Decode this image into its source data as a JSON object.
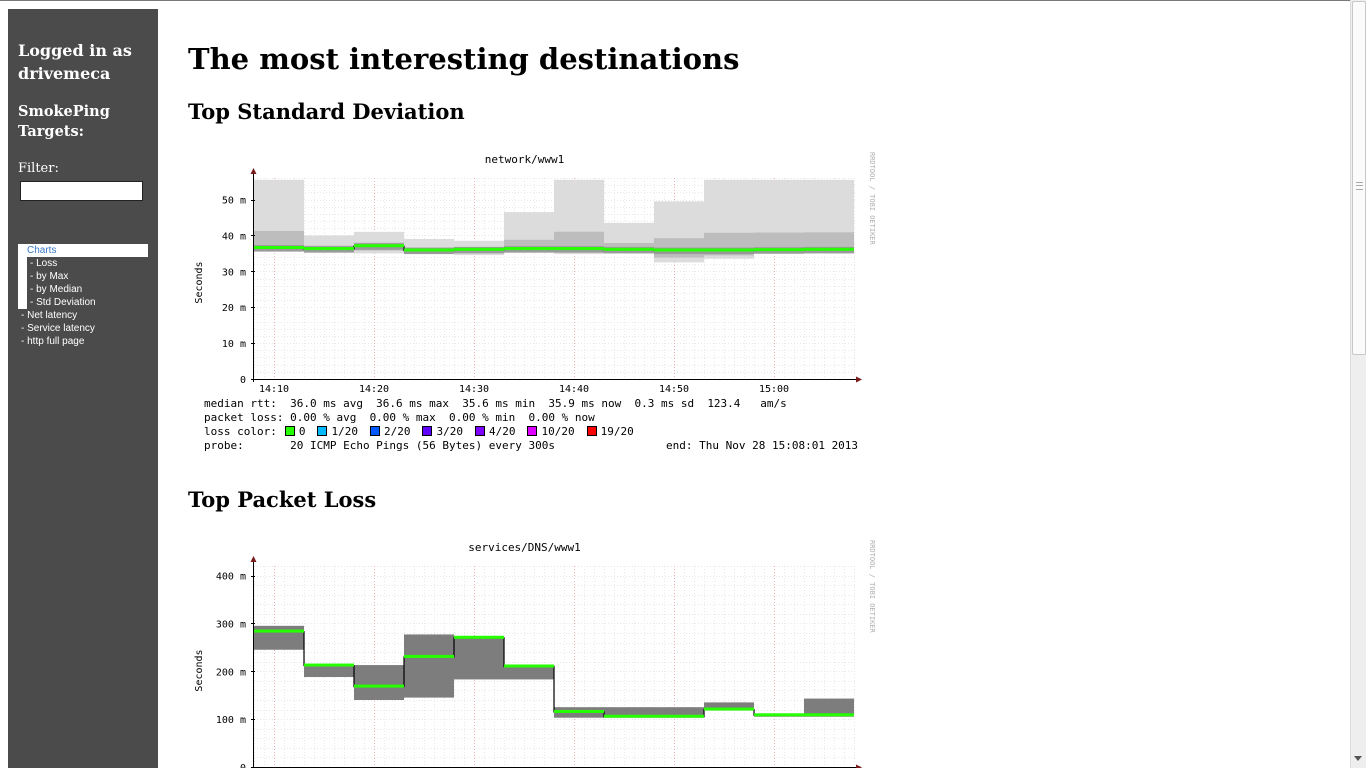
{
  "sidebar": {
    "login_text": "Logged in as drivemeca",
    "targets_title": "SmokePing Targets:",
    "filter_label": "Filter:",
    "filter_value": "",
    "menu": [
      {
        "label": "Charts"
      },
      {
        "label": "- Loss"
      },
      {
        "label": "- by Max"
      },
      {
        "label": "- by Median"
      },
      {
        "label": "- Std Deviation"
      },
      {
        "label": "- Net latency"
      },
      {
        "label": "- Service latency"
      },
      {
        "label": "- http full page"
      }
    ]
  },
  "main": {
    "page_title": "The most interesting destinations",
    "section1_title": "Top Standard Deviation",
    "section2_title": "Top Packet Loss"
  },
  "chart_data": [
    {
      "type": "area",
      "title": "network/www1",
      "ylabel": "Seconds",
      "watermark": "RRDTOOL / TOBI OETIKER",
      "x_ticks": [
        "14:10",
        "14:20",
        "14:30",
        "14:40",
        "14:50",
        "15:00"
      ],
      "y_ticks": [
        "0",
        "10 m",
        "20 m",
        "30 m",
        "40 m",
        "50 m"
      ],
      "ylim": [
        0,
        56
      ],
      "median_ms": [
        36.5,
        36.2,
        37.0,
        35.8,
        36.0,
        36.2,
        36.2,
        36.0,
        35.8,
        35.8,
        35.9,
        36.0
      ],
      "min_ms": [
        35.5,
        35.5,
        35.0,
        35.3,
        34.5,
        35.5,
        34.8,
        35.0,
        32.5,
        33.5,
        35.0,
        35.0
      ],
      "max_ms": [
        55.5,
        40.0,
        41.0,
        39.0,
        38.5,
        46.5,
        55.5,
        43.5,
        49.5,
        55.5,
        55.5,
        55.5
      ],
      "legend": {
        "median_line": "median rtt:  36.0 ms avg  36.6 ms max  35.6 ms min  35.9 ms now  0.3 ms sd  123.4   am/s",
        "loss_line": "packet loss: 0.00 % avg  0.00 % max  0.00 % min  0.00 % now",
        "loss_color_label": "loss color:",
        "loss_colors": [
          {
            "label": "0",
            "color": "#26ff00"
          },
          {
            "label": "1/20",
            "color": "#00b8ff"
          },
          {
            "label": "2/20",
            "color": "#0059ff"
          },
          {
            "label": "3/20",
            "color": "#5e00ff"
          },
          {
            "label": "4/20",
            "color": "#7e00ff"
          },
          {
            "label": "10/20",
            "color": "#dd00ff"
          },
          {
            "label": "19/20",
            "color": "#ff0000"
          }
        ],
        "probe_line": "probe:       20 ICMP Echo Pings (56 Bytes) every 300s",
        "end_text": "end: Thu Nov 28 15:08:01 2013"
      }
    },
    {
      "type": "area",
      "title": "services/DNS/www1",
      "ylabel": "Seconds",
      "watermark": "RRDTOOL / TOBI OETIKER",
      "y_ticks": [
        "0",
        "100 m",
        "200 m",
        "300 m",
        "400 m"
      ],
      "ylim": [
        0,
        420
      ],
      "median_ms": [
        283,
        212,
        168,
        230,
        270,
        210,
        115,
        105,
        105,
        120,
        108,
        108
      ],
      "min_ms": [
        245,
        188,
        140,
        145,
        183,
        183,
        103,
        103,
        103,
        118,
        105,
        105
      ],
      "max_ms": [
        295,
        215,
        213,
        277,
        273,
        213,
        125,
        125,
        125,
        135,
        110,
        143
      ]
    }
  ]
}
